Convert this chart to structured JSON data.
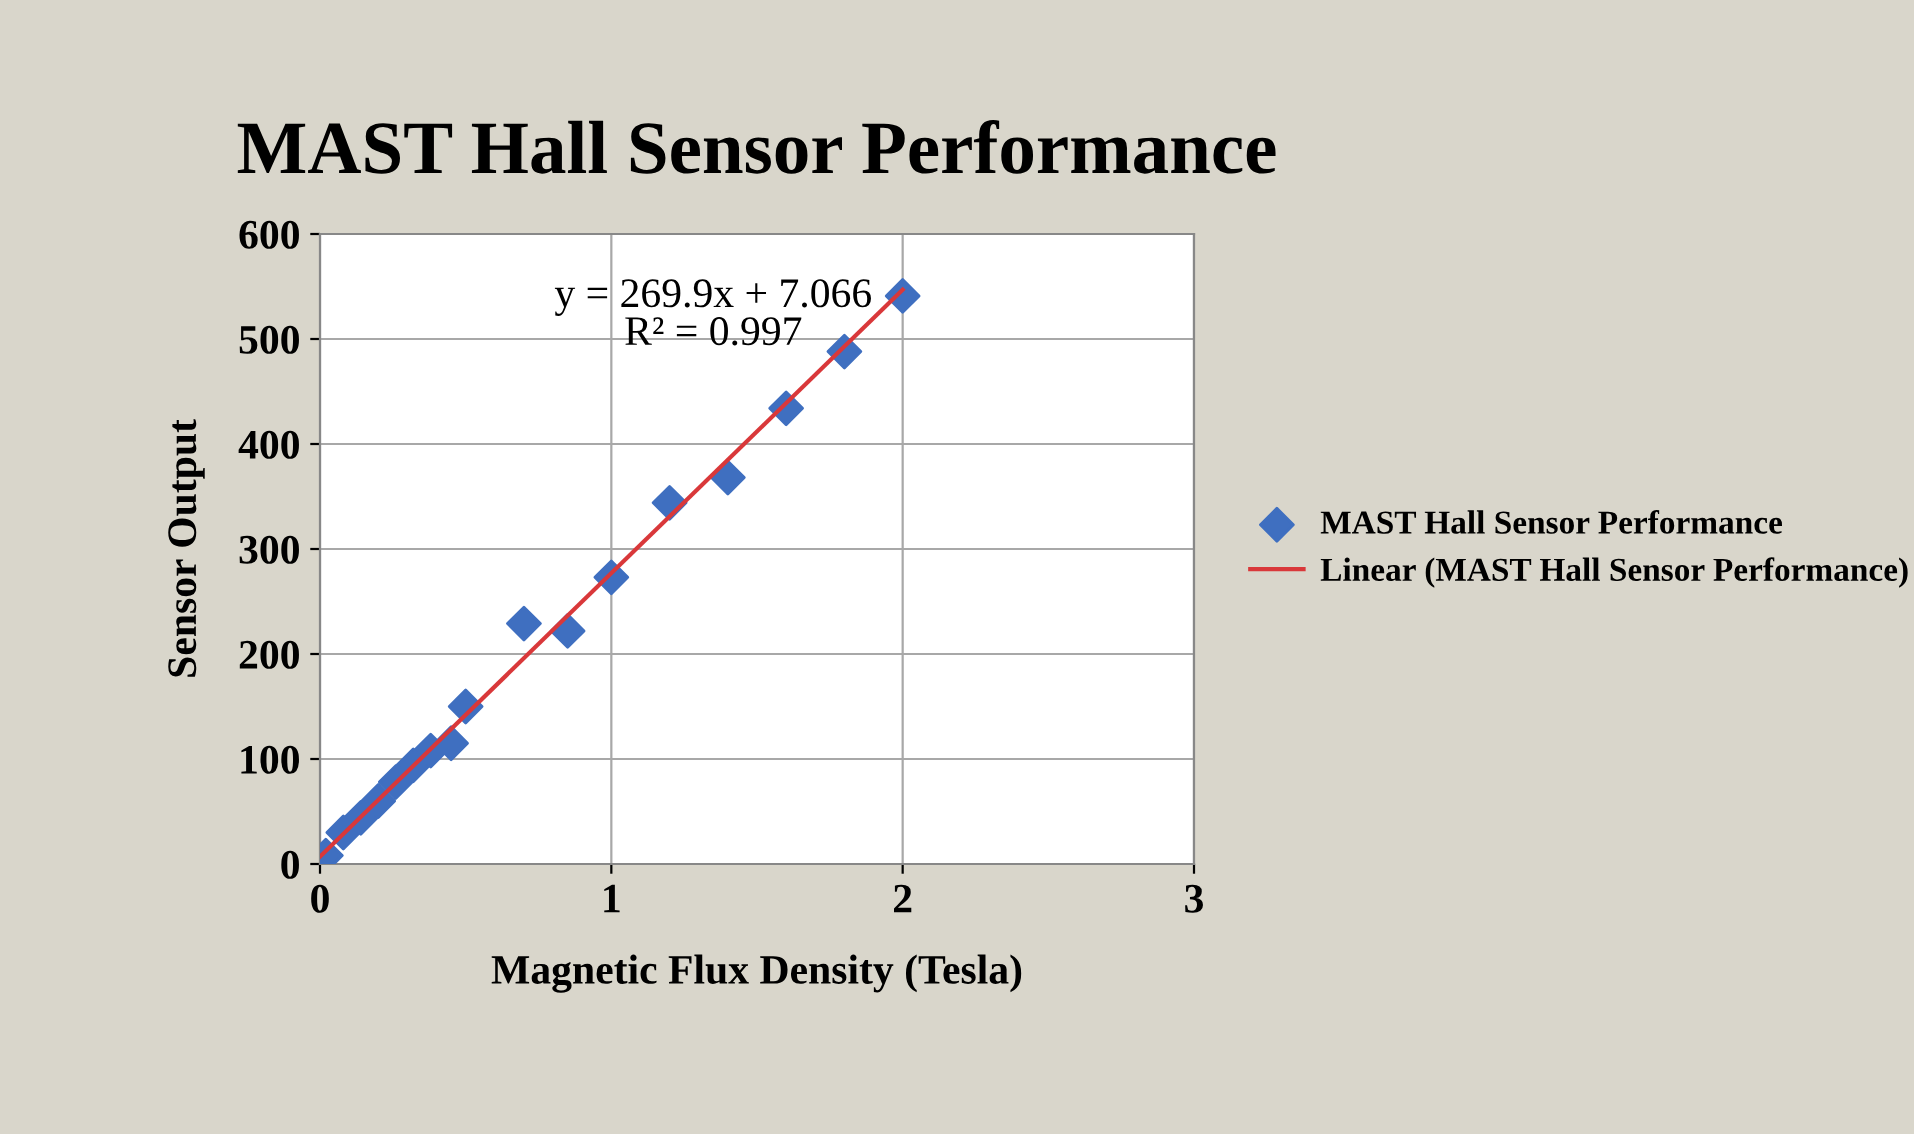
{
  "chart_data": {
    "type": "scatter",
    "title": "MAST Hall Sensor Performance",
    "xlabel": "Magnetic Flux Density (Tesla)",
    "ylabel": "Sensor Output",
    "xlim": [
      0,
      3
    ],
    "xticks": [
      0,
      1,
      2,
      3
    ],
    "ylim": [
      0,
      600
    ],
    "yticks": [
      0,
      100,
      200,
      300,
      400,
      500,
      600
    ],
    "grid": true,
    "legend": "right",
    "marker": "diamond",
    "annotations": [
      "y = 269.9x + 7.066\nR² = 0.997"
    ],
    "series": [
      {
        "name": "MAST Hall Sensor Performance",
        "color": "#3f6fc0",
        "x": [
          0.02,
          0.08,
          0.14,
          0.2,
          0.26,
          0.32,
          0.38,
          0.45,
          0.5,
          0.7,
          0.85,
          1.0,
          1.2,
          1.4,
          1.6,
          1.8,
          2.0
        ],
        "values": [
          8,
          30,
          44,
          60,
          78,
          94,
          108,
          115,
          150,
          229,
          222,
          273,
          344,
          368,
          434,
          488,
          541
        ]
      },
      {
        "name": "Linear (MAST Hall Sensor Performance)",
        "color": "#d9383a",
        "type": "line",
        "marker": "none",
        "x": [
          0,
          2
        ],
        "values": [
          7,
          547
        ]
      }
    ]
  }
}
